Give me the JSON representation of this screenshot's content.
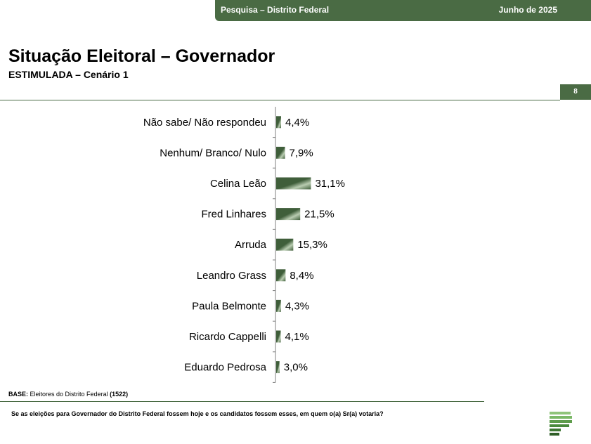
{
  "header": {
    "survey_label": "Pesquisa – Distrito Federal",
    "date_label": "Junho de 2025"
  },
  "page": {
    "title": "Situação Eleitoral – Governador",
    "subtitle": "ESTIMULADA – Cenário 1",
    "page_number": "8"
  },
  "footer": {
    "base_label": "BASE:",
    "base_text": "Eleitores do Distrito Federal",
    "base_count": "(1522)",
    "question": "Se as eleições para Governador do Distrito Federal fossem hoje e os candidatos fossem esses, em quem o(a)  Sr(a) votaria?"
  },
  "colors": {
    "brand": "#4a6b44",
    "bar_dark": "#3f5e3a",
    "bar_light": "#b9ccb1"
  },
  "chart_data": {
    "type": "bar",
    "orientation": "horizontal",
    "categories": [
      "Não sabe/ Não respondeu",
      "Nenhum/ Branco/ Nulo",
      "Celina Leão",
      "Fred Linhares",
      "Arruda",
      "Leandro Grass",
      "Paula Belmonte",
      "Ricardo Cappelli",
      "Eduardo Pedrosa"
    ],
    "values": [
      4.4,
      7.9,
      31.1,
      21.5,
      15.3,
      8.4,
      4.3,
      4.1,
      3.0
    ],
    "data_labels": [
      "4,4%",
      "7,9%",
      "31,1%",
      "21,5%",
      "15,3%",
      "8,4%",
      "4,3%",
      "4,1%",
      "3,0%"
    ],
    "unit": "%",
    "xlim": [
      0,
      100
    ],
    "grid": false,
    "legend": "none"
  }
}
